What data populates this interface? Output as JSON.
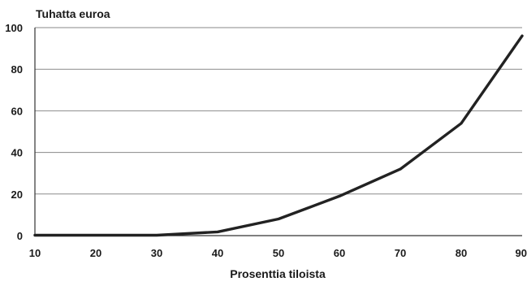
{
  "chart_data": {
    "type": "line",
    "title": "",
    "ylabel": "Tuhatta euroa",
    "xlabel": "Prosenttia tiloista",
    "x": [
      10,
      20,
      30,
      40,
      50,
      60,
      70,
      80,
      90
    ],
    "series": [
      {
        "values": [
          0.2,
          0.2,
          0.2,
          1.8,
          8,
          19,
          32,
          54,
          96
        ]
      }
    ],
    "xlim": [
      10,
      90
    ],
    "ylim": [
      0,
      100
    ],
    "xticks": [
      "10",
      "20",
      "30",
      "40",
      "50",
      "60",
      "70",
      "80",
      "90"
    ],
    "yticks": [
      "0",
      "20",
      "40",
      "60",
      "80",
      "100"
    ],
    "grid": "horizontal",
    "legend": "none",
    "line_color": "#222222"
  }
}
